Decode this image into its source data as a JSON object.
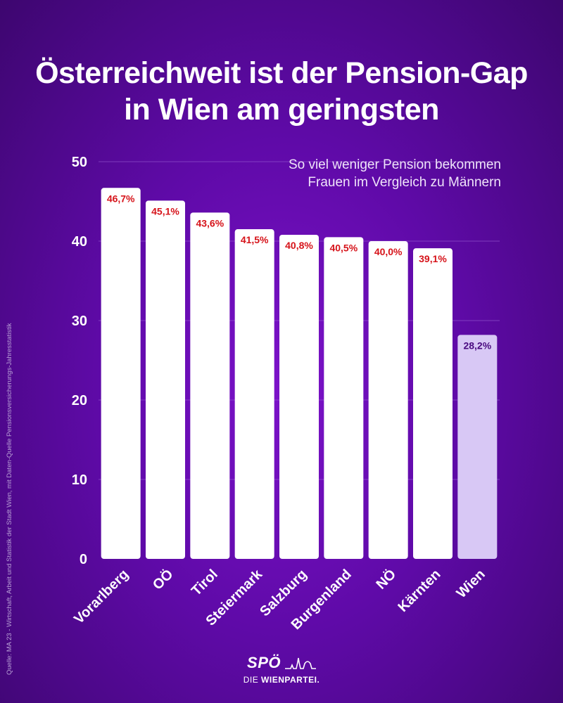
{
  "header": {
    "title_line1": "Österreichweit ist der Pension-Gap",
    "title_line2": "in Wien am geringsten"
  },
  "chart_data": {
    "type": "bar",
    "subtitle_line1": "So viel weniger Pension bekommen",
    "subtitle_line2": "Frauen im Vergleich zu Männern",
    "categories": [
      "Vorarlberg",
      "OÖ",
      "Tirol",
      "Steiermark",
      "Salzburg",
      "Burgenland",
      "NÖ",
      "Kärnten",
      "Wien"
    ],
    "values": [
      46.7,
      45.1,
      43.6,
      41.5,
      40.8,
      40.5,
      40.0,
      39.1,
      28.2
    ],
    "labels": [
      "46,7%",
      "45,1%",
      "43,6%",
      "41,5%",
      "40,8%",
      "40,5%",
      "40,0%",
      "39,1%",
      "28,2%"
    ],
    "highlight_index": 8,
    "yticks": [
      0,
      10,
      20,
      30,
      40,
      50
    ],
    "ylim": [
      0,
      50
    ],
    "colors": {
      "bar": "#ffffff",
      "bar_highlight": "#d8c8f5",
      "label": "#d6131a",
      "label_highlight": "#4a0a80",
      "grid": "#9a5fd4"
    }
  },
  "source": "Quelle: MA 23 - Wirtschaft, Arbeit und Statistik der Stadt Wien, mit Daten-Quelle Pensionsversicherungs-Jahresstatistik",
  "logo": {
    "mark": "SPÖ",
    "sub_prefix": "DIE ",
    "sub_bold": "WIENPARTEI."
  }
}
